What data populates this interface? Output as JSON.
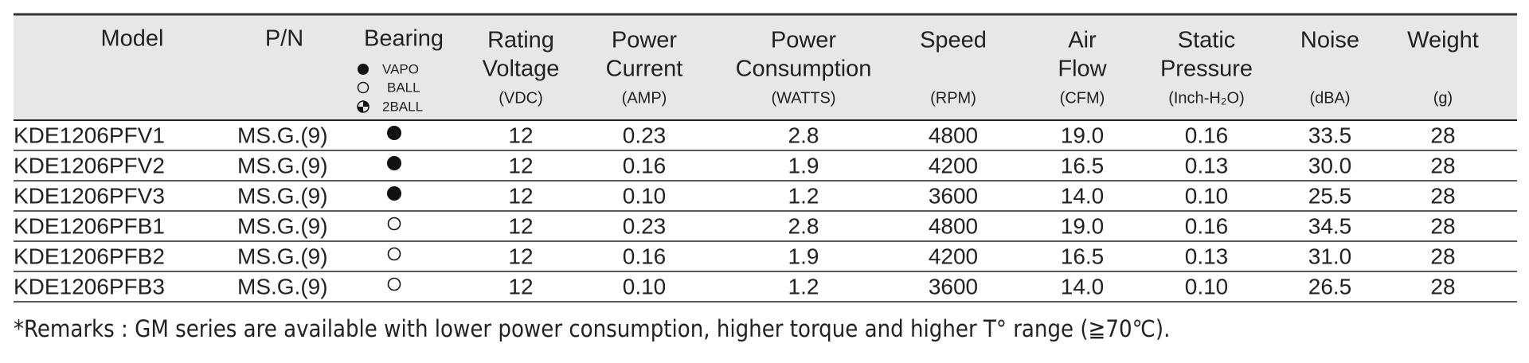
{
  "table": {
    "model_header": "Model",
    "pn_header": "P/N",
    "bearing_header": "Bearing",
    "bearing_legend": [
      "VAPO",
      "BALL",
      "2BALL"
    ],
    "columns": [
      {
        "title": [
          "Rating",
          "Voltage"
        ],
        "unit": "(VDC)"
      },
      {
        "title": [
          "Power",
          "Current"
        ],
        "unit": "(AMP)"
      },
      {
        "title": [
          "Power",
          "Consumption"
        ],
        "unit": "(WATTS)"
      },
      {
        "title": [
          "Speed"
        ],
        "unit": "(RPM)"
      },
      {
        "title": [
          "Air",
          "Flow"
        ],
        "unit": "(CFM)"
      },
      {
        "title": [
          "Static",
          "Pressure"
        ],
        "unit": "(Inch-H₂O)"
      },
      {
        "title": [
          "Noise"
        ],
        "unit": "(dBA)"
      },
      {
        "title": [
          "Weight"
        ],
        "unit": "(g)"
      }
    ],
    "rows": [
      [
        "KDE1206PFV1",
        "MS.G.(9)",
        "12",
        "0.23",
        "2.8",
        "4800",
        "19.0",
        "0.16",
        "33.5",
        "28"
      ],
      [
        "KDE1206PFV2",
        "MS.G.(9)",
        "12",
        "0.16",
        "1.9",
        "4200",
        "16.5",
        "0.13",
        "30.0",
        "28"
      ],
      [
        "KDE1206PFV3",
        "MS.G.(9)",
        "12",
        "0.10",
        "1.2",
        "3600",
        "14.0",
        "0.10",
        "25.5",
        "28"
      ],
      [
        "KDE1206PFB1",
        "MS.G.(9)",
        "12",
        "0.23",
        "2.8",
        "4800",
        "19.0",
        "0.16",
        "34.5",
        "28"
      ],
      [
        "KDE1206PFB2",
        "MS.G.(9)",
        "12",
        "0.16",
        "1.9",
        "4200",
        "16.5",
        "0.13",
        "31.0",
        "28"
      ],
      [
        "KDE1206PFB3",
        "MS.G.(9)",
        "12",
        "0.10",
        "1.2",
        "3600",
        "14.0",
        "0.10",
        "26.5",
        "28"
      ]
    ]
  },
  "remark": "*Remarks : GM series are available with lower power consumption, higher torque and higher T° range (≧70℃)."
}
